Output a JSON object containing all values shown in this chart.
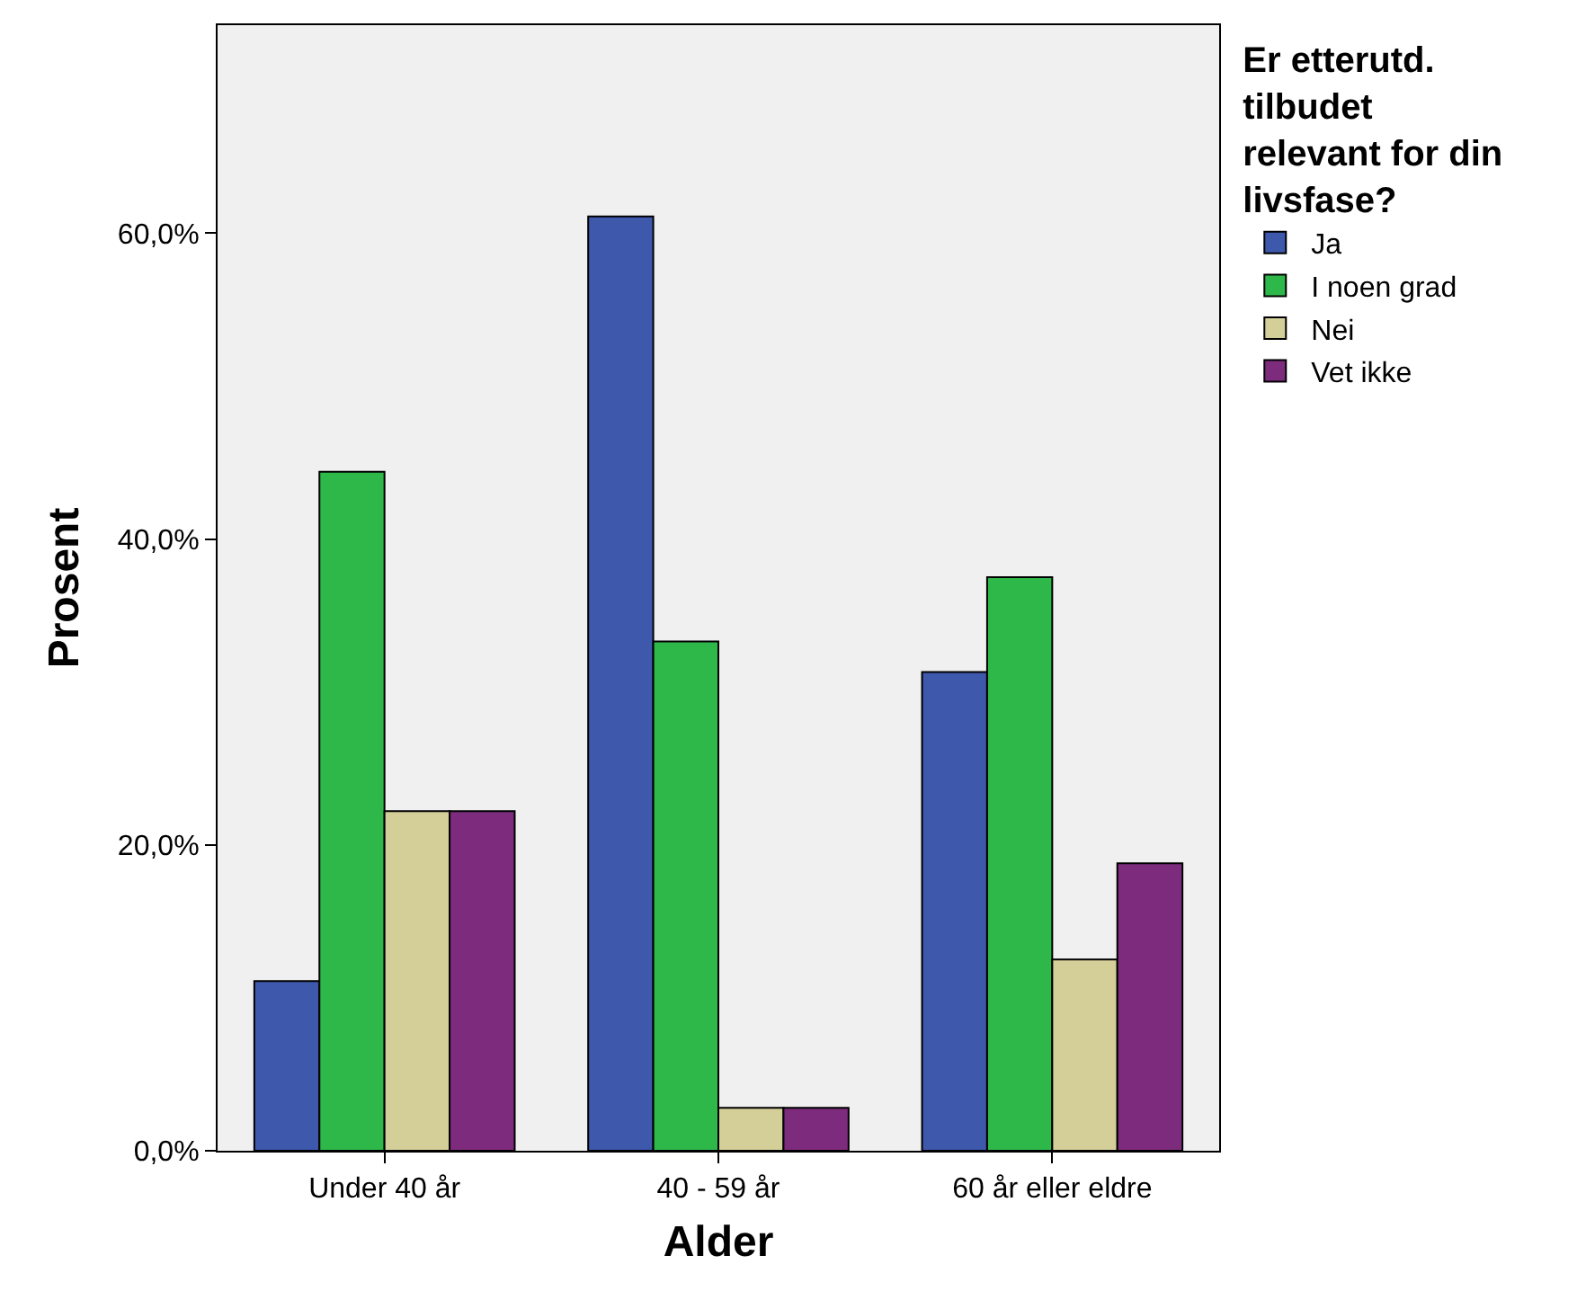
{
  "chart_data": {
    "type": "bar",
    "xlabel": "Alder",
    "ylabel": "Prosent",
    "legend_title": "Er etterutd. tilbudet relevant for din livsfase?",
    "legend": "top right",
    "categories": [
      "Under 40 år",
      "40 - 59 år",
      "60 år eller eldre"
    ],
    "series": [
      {
        "name": "Ja",
        "color": "#3e58ac",
        "values": [
          11.1,
          61.1,
          31.3
        ]
      },
      {
        "name": "I noen grad",
        "color": "#2fb84a",
        "values": [
          44.4,
          33.3,
          37.5
        ]
      },
      {
        "name": "Nei",
        "color": "#d4cf98",
        "values": [
          22.2,
          2.8,
          12.5
        ]
      },
      {
        "name": "Vet ikke",
        "color": "#7d2c7d",
        "values": [
          22.2,
          2.8,
          18.8
        ]
      }
    ],
    "ylim": [
      0,
      73.6
    ],
    "yticks": [
      {
        "value": 0,
        "label": "0,0%"
      },
      {
        "value": 20,
        "label": "20,0%"
      },
      {
        "value": 40,
        "label": "40,0%"
      },
      {
        "value": 60,
        "label": "60,0%"
      }
    ],
    "grid": false
  }
}
